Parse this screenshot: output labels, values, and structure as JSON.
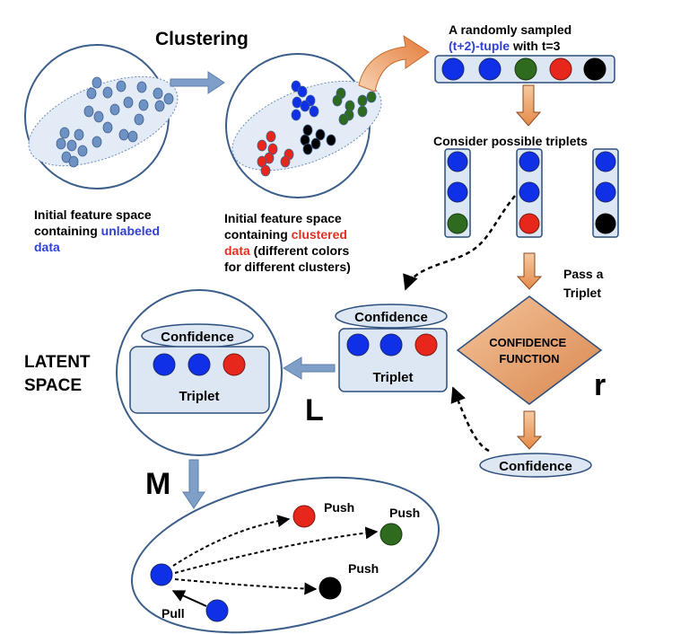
{
  "colors": {
    "blue": "#1030e8",
    "green": "#2e6b1e",
    "red": "#e8271c",
    "black": "#000000",
    "point": "#6f92c4",
    "circle_stroke": "#3b5d8a",
    "panel_fill": "#dde7f3",
    "arrow_blue": "#7f9fc8",
    "arrow_orange": "#f0a86a",
    "diamond": "#e6a26a",
    "label_blue": "#3040d8",
    "label_red": "#e03020"
  },
  "title": "Clustering",
  "initial_space": {
    "line1": "Initial feature space",
    "line2_prefix": "containing ",
    "line2_highlight": "unlabeled",
    "line3": "data"
  },
  "clustered_space": {
    "line1": "Initial feature space",
    "line2_prefix": "containing ",
    "line2_highlight": "clustered",
    "line3_highlight": "data",
    "line3_suffix": " (different colors",
    "line4": "for different clusters)"
  },
  "tuple": {
    "line1": "A randomly sampled",
    "line2_highlight": "(t+2)-tuple",
    "line2_suffix": " with t=3"
  },
  "consider": "Consider possible triplets",
  "pass": {
    "line1": "Pass a",
    "line2": "Triplet"
  },
  "confidence_function": {
    "line1": "CONFIDENCE",
    "line2": "FUNCTION"
  },
  "confidence": "Confidence",
  "triplet": "Triplet",
  "letters": {
    "L": "L",
    "r": "r",
    "M": "M"
  },
  "latent_space": {
    "line1": "LATENT",
    "line2": "SPACE"
  },
  "push": "Push",
  "pull": "Pull"
}
